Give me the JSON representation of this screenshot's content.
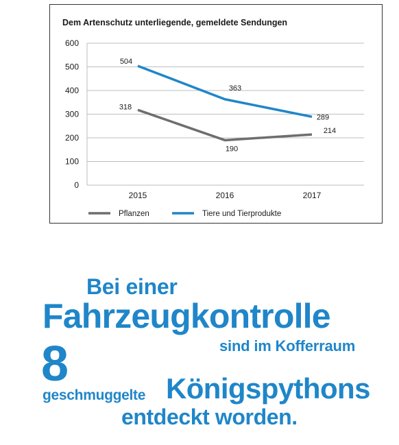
{
  "chart_data": {
    "type": "line",
    "title": "Dem Artenschutz unterliegende, gemeldete Sendungen",
    "categories": [
      "2015",
      "2016",
      "2017"
    ],
    "y_ticks": [
      0,
      100,
      200,
      300,
      400,
      500,
      600
    ],
    "ylim": [
      0,
      600
    ],
    "grid": "horizontal",
    "legend_position": "bottom",
    "series": [
      {
        "name": "Pflanzen",
        "color": "#6d6e70",
        "values": [
          318,
          190,
          214
        ],
        "labels": [
          "318",
          "190",
          "214"
        ]
      },
      {
        "name": "Tiere und Tierprodukte",
        "color": "#1f86c9",
        "values": [
          504,
          363,
          289
        ],
        "labels": [
          "504",
          "363",
          "289"
        ]
      }
    ]
  },
  "headline": {
    "line1": "Bei einer",
    "line2": "Fahrzeugkontrolle",
    "line3": "sind im Kofferraum",
    "number": "8",
    "line4": "geschmuggelte",
    "line5": "Königspythons",
    "line6": "entdeckt worden.",
    "color": "#1f86c9"
  }
}
